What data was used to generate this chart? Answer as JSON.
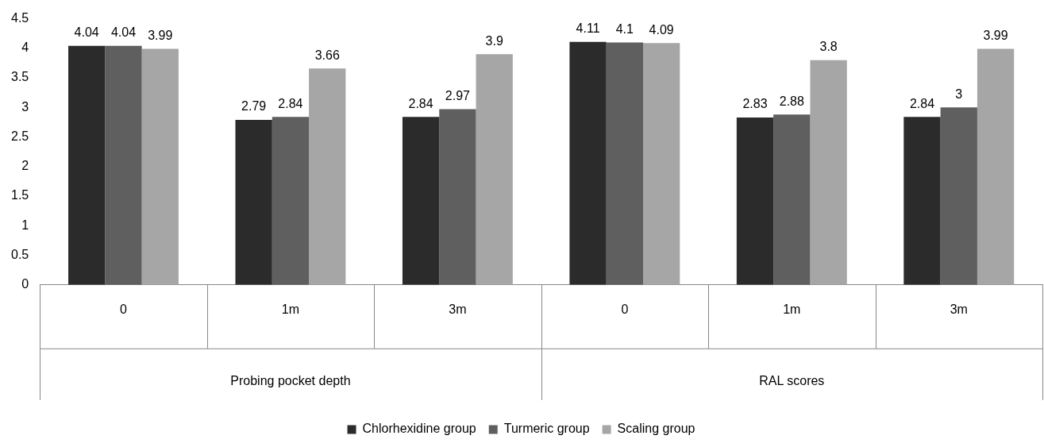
{
  "chart_data": {
    "type": "bar",
    "categories": [
      "0",
      "1m",
      "3m",
      "0",
      "1m",
      "3m"
    ],
    "series": [
      {
        "name": "Chlorhexidine group",
        "color": "#2b2b2b",
        "values": [
          4.04,
          2.79,
          2.84,
          4.11,
          2.83,
          2.84
        ]
      },
      {
        "name": "Turmeric group",
        "color": "#5f5f5f",
        "values": [
          4.04,
          2.84,
          2.97,
          4.1,
          2.88,
          3
        ]
      },
      {
        "name": "Scaling group",
        "color": "#a6a6a6",
        "values": [
          3.99,
          3.66,
          3.9,
          4.09,
          3.8,
          3.99
        ]
      }
    ],
    "annotations": [
      "Probing pocket depth",
      "RAL scores"
    ],
    "ylim": [
      0,
      4.5
    ],
    "yticks": [
      0,
      0.5,
      1,
      1.5,
      2,
      2.5,
      3,
      3.5,
      4,
      4.5
    ],
    "grid": false,
    "legend": "bottom",
    "data_labels": true
  }
}
